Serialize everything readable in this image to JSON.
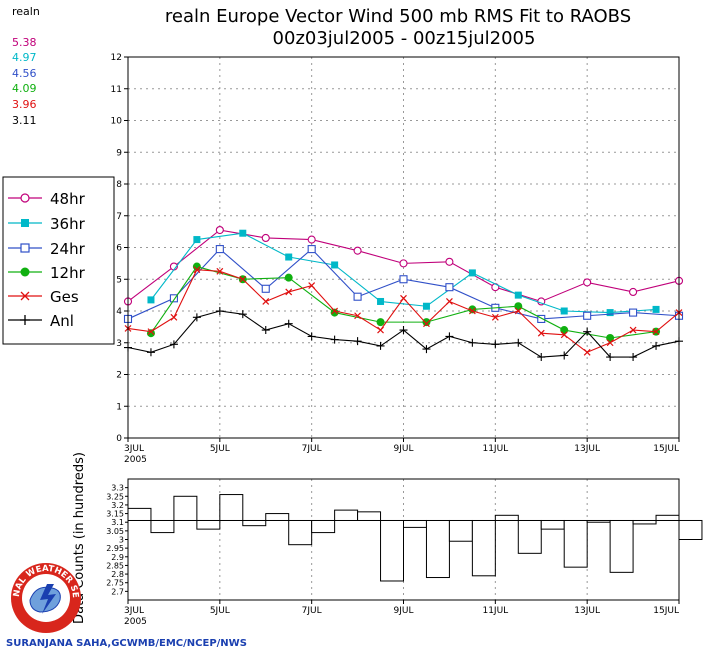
{
  "title": {
    "line1": "realn Europe Vector Wind 500 mb RMS Fit to RAOBS",
    "line2": "00z03jul2005 - 00z15jul2005"
  },
  "means": {
    "header": "realn",
    "values": [
      {
        "text": "5.38",
        "color": "#c0007a"
      },
      {
        "text": "4.97",
        "color": "#00b8c8"
      },
      {
        "text": "4.56",
        "color": "#3050c8"
      },
      {
        "text": "4.09",
        "color": "#10b010"
      },
      {
        "text": "3.96",
        "color": "#e01010"
      },
      {
        "text": "3.11",
        "color": "#000000"
      }
    ]
  },
  "credit": "SURANJANA SAHA,GCWMB/EMC/NCEP/NWS",
  "logo_text": "NATIONAL WEATHER SERVICE",
  "chart_data": [
    {
      "type": "line",
      "title": "realn Europe Vector Wind 500 mb RMS Fit to RAOBS",
      "subtitle": "00z03jul2005 - 00z15jul2005",
      "x_range": [
        3,
        15
      ],
      "x_ticks": [
        {
          "x": 3,
          "label": "3JUL",
          "sub": "2005"
        },
        {
          "x": 5,
          "label": "5JUL"
        },
        {
          "x": 7,
          "label": "7JUL"
        },
        {
          "x": 9,
          "label": "9JUL"
        },
        {
          "x": 11,
          "label": "11JUL"
        },
        {
          "x": 13,
          "label": "13JUL"
        },
        {
          "x": 15,
          "label": "15JUL"
        }
      ],
      "ylim": [
        0,
        12
      ],
      "y_ticks": [
        0,
        1,
        2,
        3,
        4,
        5,
        6,
        7,
        8,
        9,
        10,
        11,
        12
      ],
      "grid": true,
      "legend_position": "left",
      "series": [
        {
          "name": "48hr",
          "color": "#c0007a",
          "marker": "circle-open",
          "x": [
            3,
            4,
            5,
            6,
            7,
            8,
            9,
            10,
            11,
            12,
            13,
            14,
            15
          ],
          "y": [
            4.3,
            5.4,
            6.55,
            6.3,
            6.25,
            5.9,
            5.5,
            5.55,
            4.75,
            4.3,
            4.9,
            4.6,
            4.95
          ]
        },
        {
          "name": "36hr",
          "color": "#00b8c8",
          "marker": "square-filled",
          "x": [
            3.5,
            4.5,
            5.5,
            6.5,
            7.5,
            8.5,
            9.5,
            10.5,
            11.5,
            12.5,
            13.5,
            14.5
          ],
          "y": [
            4.35,
            6.25,
            6.45,
            5.7,
            5.45,
            4.3,
            4.15,
            5.2,
            4.5,
            4.0,
            3.95,
            4.05
          ]
        },
        {
          "name": "24hr",
          "color": "#3050c8",
          "marker": "square-open",
          "x": [
            3,
            4,
            5,
            6,
            7,
            8,
            9,
            10,
            11,
            12,
            13,
            14,
            15
          ],
          "y": [
            3.75,
            4.4,
            5.95,
            4.7,
            5.95,
            4.45,
            5.0,
            4.75,
            4.1,
            3.75,
            3.85,
            3.95,
            3.85
          ]
        },
        {
          "name": "12hr",
          "color": "#10b010",
          "marker": "circle-filled",
          "x": [
            3.5,
            4.5,
            5.5,
            6.5,
            7.5,
            8.5,
            9.5,
            10.5,
            11.5,
            12.5,
            13.5,
            14.5
          ],
          "y": [
            3.3,
            5.4,
            5.0,
            5.05,
            3.95,
            3.65,
            3.65,
            4.05,
            4.15,
            3.4,
            3.15,
            3.35
          ]
        },
        {
          "name": "Ges",
          "color": "#e01010",
          "marker": "x",
          "x": [
            3,
            3.5,
            4,
            4.5,
            5,
            5.5,
            6,
            6.5,
            7,
            7.5,
            8,
            8.5,
            9,
            9.5,
            10,
            10.5,
            11,
            11.5,
            12,
            12.5,
            13,
            13.5,
            14,
            14.5,
            15
          ],
          "y": [
            3.45,
            3.35,
            3.8,
            5.3,
            5.25,
            5.0,
            4.3,
            4.6,
            4.8,
            4.0,
            3.85,
            3.4,
            4.4,
            3.6,
            4.3,
            4.0,
            3.8,
            4.0,
            3.3,
            3.25,
            2.7,
            3.0,
            3.4,
            3.35,
            3.95
          ]
        },
        {
          "name": "Anl",
          "color": "#000000",
          "marker": "plus",
          "x": [
            3,
            3.5,
            4,
            4.5,
            5,
            5.5,
            6,
            6.5,
            7,
            7.5,
            8,
            8.5,
            9,
            9.5,
            10,
            10.5,
            11,
            11.5,
            12,
            12.5,
            13,
            13.5,
            14,
            14.5,
            15
          ],
          "y": [
            2.85,
            2.7,
            2.95,
            3.8,
            4.0,
            3.9,
            3.4,
            3.6,
            3.2,
            3.1,
            3.05,
            2.9,
            3.4,
            2.8,
            3.2,
            3.0,
            2.95,
            3.0,
            2.55,
            2.6,
            3.35,
            2.55,
            2.55,
            2.9,
            3.05
          ]
        }
      ]
    },
    {
      "type": "bar",
      "ylabel": "Data Counts (in hundreds)",
      "x_range": [
        3,
        15
      ],
      "x_ticks": [
        {
          "x": 3,
          "label": "3JUL",
          "sub": "2005"
        },
        {
          "x": 5,
          "label": "5JUL"
        },
        {
          "x": 7,
          "label": "7JUL"
        },
        {
          "x": 9,
          "label": "9JUL"
        },
        {
          "x": 11,
          "label": "11JUL"
        },
        {
          "x": 13,
          "label": "13JUL"
        },
        {
          "x": 15,
          "label": "15JUL"
        }
      ],
      "ylim": [
        2.65,
        3.35
      ],
      "y_ticks": [
        {
          "v": 2.7,
          "label": "2.7"
        },
        {
          "v": 2.75,
          "label": "2.75"
        },
        {
          "v": 2.8,
          "label": "2.8"
        },
        {
          "v": 2.85,
          "label": "2.85"
        },
        {
          "v": 2.9,
          "label": "2.9"
        },
        {
          "v": 2.95,
          "label": "2.95"
        },
        {
          "v": 3.0,
          "label": "3"
        },
        {
          "v": 3.05,
          "label": "3.05"
        },
        {
          "v": 3.1,
          "label": "3.1"
        },
        {
          "v": 3.15,
          "label": "3.15"
        },
        {
          "v": 3.2,
          "label": "3.2"
        },
        {
          "v": 3.25,
          "label": "3.25"
        },
        {
          "v": 3.3,
          "label": "3.3"
        }
      ],
      "mean_line": 3.11,
      "bins_start": 3,
      "bin_width": 0.5,
      "values": [
        3.18,
        3.04,
        3.25,
        3.06,
        3.26,
        3.08,
        3.15,
        2.97,
        3.04,
        3.17,
        3.16,
        2.76,
        3.07,
        2.78,
        2.99,
        2.79,
        3.14,
        2.92,
        3.06,
        2.84,
        3.1,
        2.81,
        3.09,
        3.14,
        3.0
      ]
    }
  ]
}
